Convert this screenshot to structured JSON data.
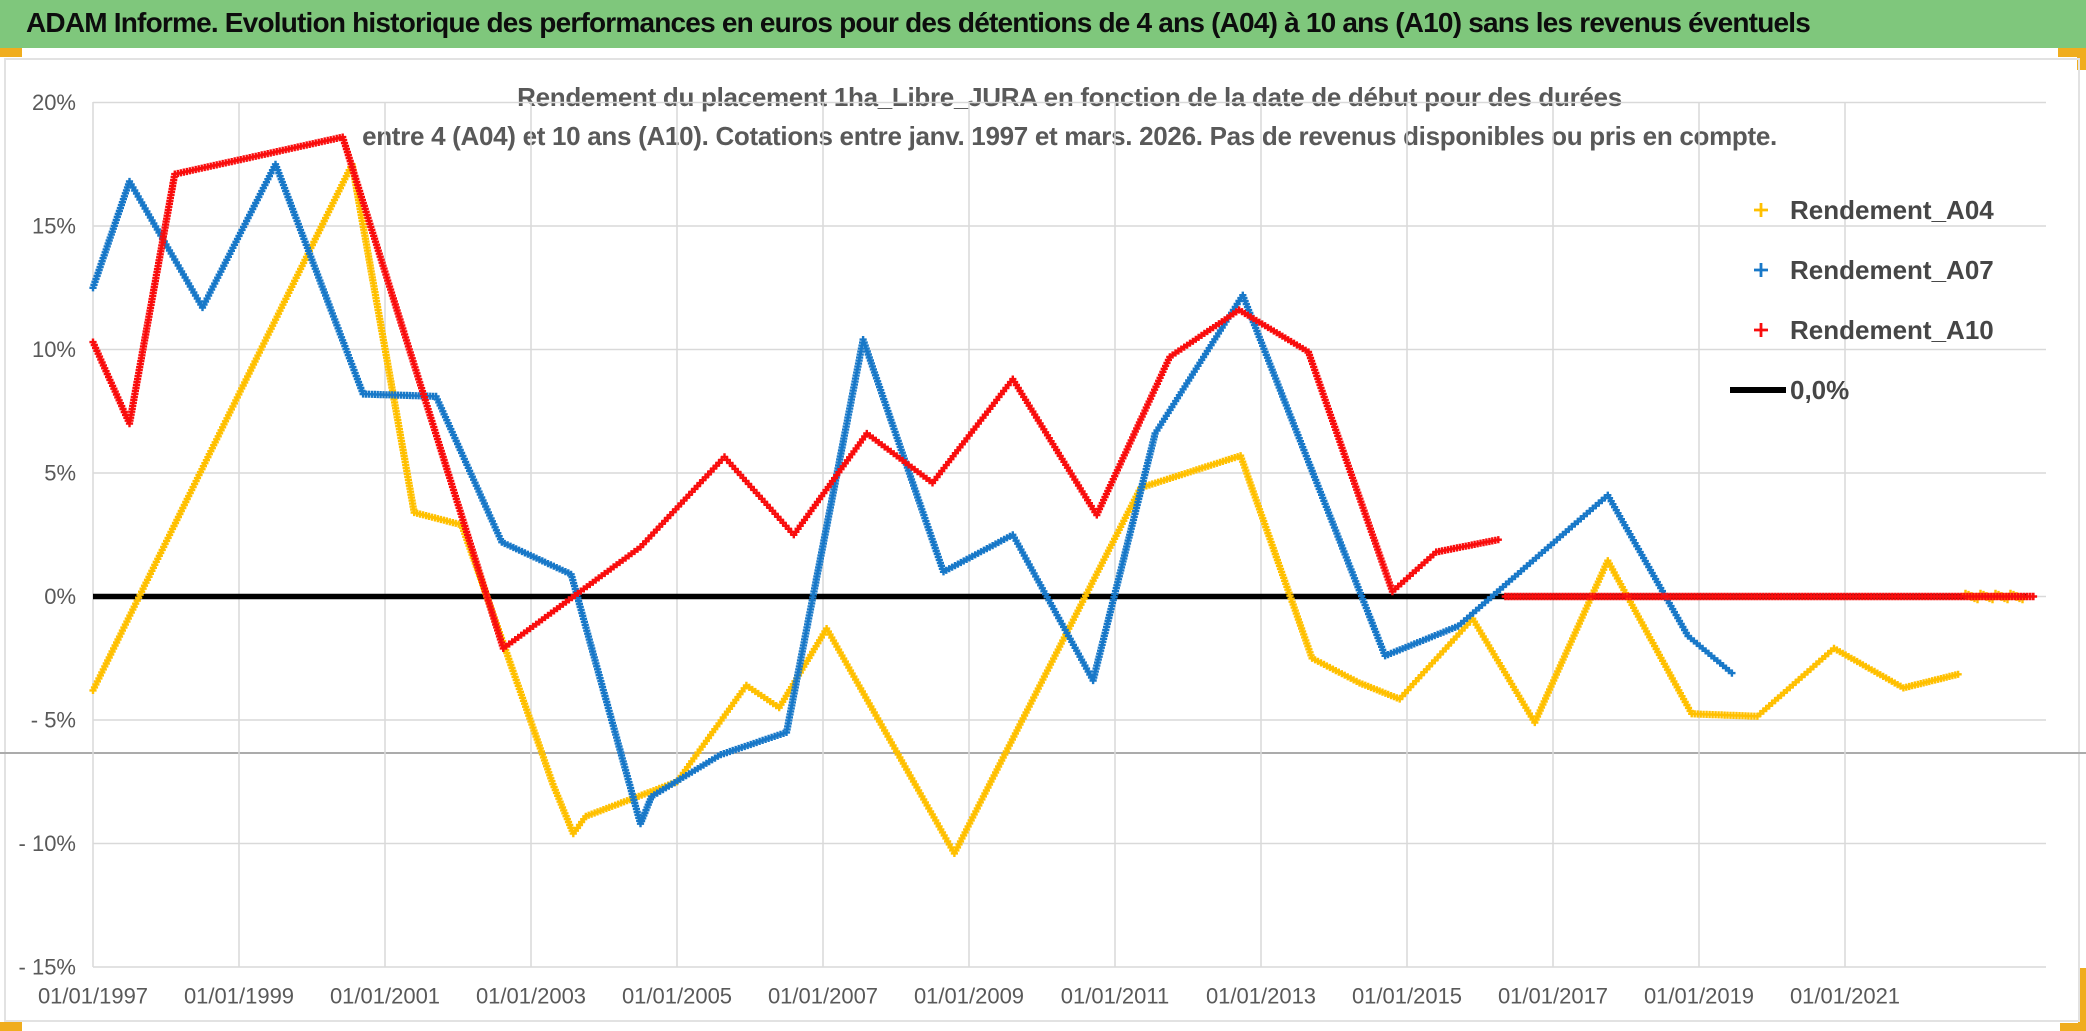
{
  "header": {
    "title": "ADAM Informe. Evolution historique des performances en euros pour des détentions de 4 ans (A04) à 10 ans (A10) sans les revenus éventuels"
  },
  "chart_title": {
    "line1": "Rendement du placement 1ha_Libre_JURA en fonction de la date de début pour des durées",
    "line2": "entre 4 (A04) et 10 ans (A10). Cotations entre janv. 1997 et mars. 2026. Pas de revenus disponibles ou pris en compte."
  },
  "colors": {
    "header_green": "#7FC77C",
    "accent_gold": "#F0AD1E",
    "grid": "#D9D9D9",
    "axis_text": "#595959",
    "zero_line": "#000000",
    "series_a04": "#FFC000",
    "series_a07": "#1878C8",
    "series_a10": "#F90D0D"
  },
  "legend": [
    {
      "label": "Rendement_A04",
      "marker": "plus",
      "color": "#FFC000"
    },
    {
      "label": "Rendement_A07",
      "marker": "plus",
      "color": "#1878C8"
    },
    {
      "label": "Rendement_A10",
      "marker": "plus",
      "color": "#F90D0D"
    },
    {
      "label": "0,0%",
      "marker": "line",
      "color": "#000000"
    }
  ],
  "chart_data": {
    "type": "scatter",
    "title": "Rendement du placement 1ha_Libre_JURA en fonction de la date de début pour des durées entre 4 (A04) et 10 ans (A10)",
    "x_unit": "date (start of holding period)",
    "y_unit": "return %",
    "xlim": [
      1996.95,
      2023.9
    ],
    "ylim": [
      -15,
      20
    ],
    "grid": true,
    "legend_position": "right",
    "x_axis": {
      "tick_years": [
        1997,
        1999,
        2001,
        2003,
        2005,
        2007,
        2009,
        2011,
        2013,
        2015,
        2017,
        2019,
        2021
      ],
      "tick_labels": [
        "01/01/1997",
        "01/01/1999",
        "01/01/2001",
        "01/01/2003",
        "01/01/2005",
        "01/01/2007",
        "01/01/2009",
        "01/01/2011",
        "01/01/2013",
        "01/01/2015",
        "01/01/2017",
        "01/01/2019",
        "01/01/2021"
      ]
    },
    "y_axis": {
      "ticks": [
        20,
        15,
        10,
        5,
        0,
        -5,
        -10,
        -15
      ],
      "tick_labels": [
        "20%",
        "15%",
        "10%",
        "5%",
        "0%",
        "- 5%",
        "- 10%",
        "- 15%"
      ]
    },
    "series": [
      {
        "name": "Rendement_A04",
        "color": "#FFC000",
        "marker": "plus",
        "vertices": [
          [
            1997.0,
            -3.8
          ],
          [
            2000.55,
            17.5
          ],
          [
            2001.4,
            3.4
          ],
          [
            2002.05,
            2.9
          ],
          [
            2003.3,
            -7.6
          ],
          [
            2003.58,
            -9.6
          ],
          [
            2003.75,
            -8.9
          ],
          [
            2005.0,
            -7.5
          ],
          [
            2005.95,
            -3.6
          ],
          [
            2006.4,
            -4.5
          ],
          [
            2007.05,
            -1.3
          ],
          [
            2008.8,
            -10.4
          ],
          [
            2011.35,
            4.4
          ],
          [
            2012.72,
            5.7
          ],
          [
            2013.7,
            -2.5
          ],
          [
            2014.35,
            -3.5
          ],
          [
            2014.9,
            -4.15
          ],
          [
            2015.9,
            -0.9
          ],
          [
            2016.75,
            -5.1
          ],
          [
            2017.75,
            1.45
          ],
          [
            2018.9,
            -4.75
          ],
          [
            2019.8,
            -4.85
          ],
          [
            2020.85,
            -2.1
          ],
          [
            2021.8,
            -3.7
          ],
          [
            2022.55,
            -3.15
          ]
        ],
        "zero_pad": [
          2022.65,
          2023.45
        ]
      },
      {
        "name": "Rendement_A07",
        "color": "#1878C8",
        "marker": "plus",
        "vertices": [
          [
            1997.0,
            12.5
          ],
          [
            1997.5,
            16.8
          ],
          [
            1998.5,
            11.7
          ],
          [
            1999.5,
            17.5
          ],
          [
            2000.7,
            8.2
          ],
          [
            2001.7,
            8.1
          ],
          [
            2002.6,
            2.2
          ],
          [
            2003.55,
            0.9
          ],
          [
            2004.5,
            -9.2
          ],
          [
            2004.65,
            -8.1
          ],
          [
            2005.6,
            -6.4
          ],
          [
            2006.5,
            -5.5
          ],
          [
            2007.55,
            10.4
          ],
          [
            2008.65,
            1.0
          ],
          [
            2009.6,
            2.5
          ],
          [
            2010.7,
            -3.4
          ],
          [
            2011.55,
            6.6
          ],
          [
            2012.75,
            12.2
          ],
          [
            2014.7,
            -2.4
          ],
          [
            2015.7,
            -1.2
          ],
          [
            2017.75,
            4.1
          ],
          [
            2018.85,
            -1.6
          ],
          [
            2019.45,
            -3.1
          ]
        ]
      },
      {
        "name": "Rendement_A10",
        "color": "#F90D0D",
        "marker": "plus",
        "vertices": [
          [
            1997.0,
            10.3
          ],
          [
            1997.5,
            7.0
          ],
          [
            1998.12,
            17.1
          ],
          [
            2000.42,
            18.6
          ],
          [
            2002.62,
            -2.1
          ],
          [
            2004.5,
            2.0
          ],
          [
            2005.65,
            5.65
          ],
          [
            2006.6,
            2.5
          ],
          [
            2007.6,
            6.6
          ],
          [
            2008.5,
            4.6
          ],
          [
            2009.6,
            8.8
          ],
          [
            2010.75,
            3.3
          ],
          [
            2011.75,
            9.7
          ],
          [
            2012.7,
            11.6
          ],
          [
            2013.65,
            9.9
          ],
          [
            2014.8,
            0.2
          ],
          [
            2015.4,
            1.8
          ],
          [
            2016.25,
            2.3
          ]
        ],
        "zero_pad": [
          2016.35,
          2023.58
        ]
      }
    ],
    "zero_line": {
      "label": "0,0%",
      "value": 0.0,
      "color": "#000000",
      "x_from": 1997.0,
      "x_to": 2023.5
    }
  }
}
